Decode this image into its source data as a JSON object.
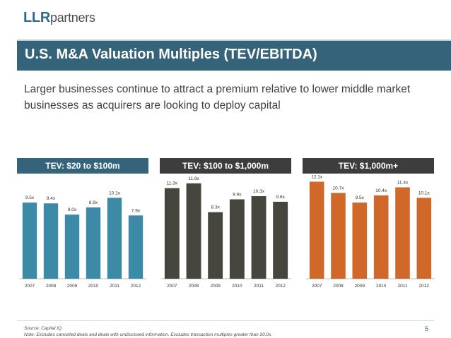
{
  "header": {
    "logo_bold": "LLR",
    "logo_rest": "partners",
    "title": "U.S. M&A Valuation Multiples (TEV/EBITDA)",
    "subtitle": "Larger businesses continue to attract a premium relative to lower middle market businesses as acquirers are looking to deploy capital"
  },
  "chart_data": [
    {
      "type": "bar",
      "title": "TEV: $20 to $100m",
      "header_color": "#35637a",
      "bar_color": "#3d8aa6",
      "categories": [
        "2007",
        "2008",
        "2009",
        "2010",
        "2011",
        "2012"
      ],
      "values": [
        9.5,
        9.4,
        8.0,
        8.9,
        10.1,
        7.9
      ],
      "labels": [
        "9.5x",
        "9.4x",
        "8.0x",
        "8.9x",
        "10.1x",
        "7.9x"
      ],
      "ylim": [
        0,
        12.5
      ]
    },
    {
      "type": "bar",
      "title": "TEV: $100 to $1,000m",
      "header_color": "#3d3d3d",
      "bar_color": "#47463e",
      "categories": [
        "2007",
        "2008",
        "2009",
        "2010",
        "2011",
        "2012"
      ],
      "values": [
        11.3,
        11.9,
        8.3,
        9.9,
        10.3,
        9.6
      ],
      "labels": [
        "11.3x",
        "11.9x",
        "8.3x",
        "9.9x",
        "10.3x",
        "9.6x"
      ],
      "ylim": [
        0,
        12.5
      ]
    },
    {
      "type": "bar",
      "title": "TEV: $1,000m+",
      "header_color": "#3d3d3d",
      "bar_color": "#d0682a",
      "categories": [
        "2007",
        "2008",
        "2009",
        "2010",
        "2011",
        "2012"
      ],
      "values": [
        12.1,
        10.7,
        9.5,
        10.4,
        11.4,
        10.1
      ],
      "labels": [
        "12.1x",
        "10.7x",
        "9.5x",
        "10.4x",
        "11.4x",
        "10.1x"
      ],
      "ylim": [
        0,
        12.5
      ]
    }
  ],
  "footer": {
    "source": "Source: Capital IQ.",
    "note": "Note: Excludes cancelled deals and deals with undisclosed information.  Excludes transaction multiples greater than 20.0x.",
    "page_number": "5"
  }
}
